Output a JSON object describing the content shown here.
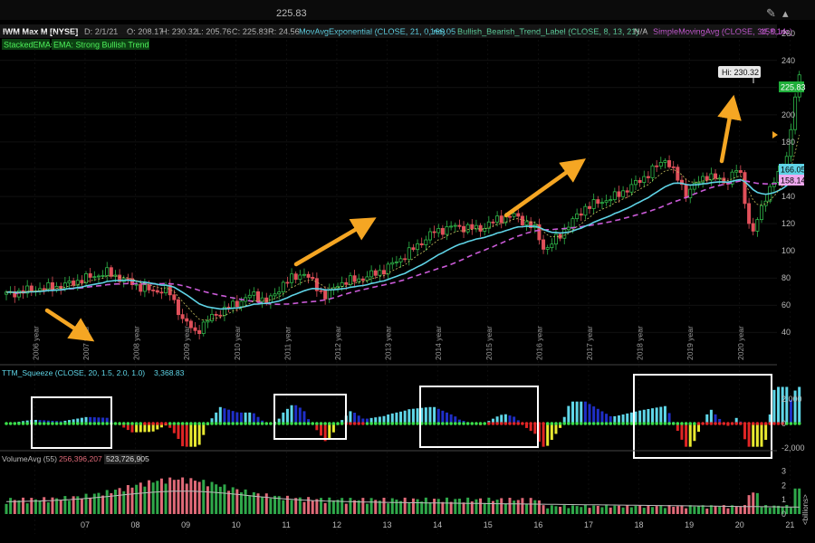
{
  "header": {
    "top_value": "225.83",
    "symbol": "IWM Max M [NYSE]",
    "date": "D: 2/1/21",
    "open": "O: 208.17",
    "high": "H: 230.32",
    "low": "L: 205.76",
    "close": "C: 225.83",
    "range": "R: 24.56",
    "ema_study": "MovAvgExponential (CLOSE, 21, 0, no)",
    "ema_value": "166.05",
    "trend_study": "Bullish_Bearish_Trend_Label (CLOSE, 8, 13, 21)",
    "trend_value": "N/A",
    "sma_study": "SimpleMovingAvg (CLOSE, 34, 0, no)",
    "sma_value": "158.14"
  },
  "labels": {
    "stacked": "StackedEMAs",
    "ema_trend": "EMA: Strong Bullish Trend"
  },
  "squeeze": {
    "title": "TTM_Squeeze (CLOSE, 20, 1.5, 2.0, 1.0)",
    "value": "3,368.83"
  },
  "volume": {
    "title": "VolumeAvg (55)",
    "avg": "256,396,207",
    "value": "523,726,905",
    "unit": "<billions>"
  },
  "callouts": {
    "high_label": "Hi: 230.32"
  },
  "colors": {
    "up": "#2fb84a",
    "down": "#e0505a",
    "ema": "#5fd3e6",
    "sma": "#c95ad6",
    "arrow": "#f5a623",
    "sq_cyan": "#5fd6e8",
    "sq_blue": "#1f2fc7",
    "sq_red": "#e02525",
    "sq_yellow": "#e8e830",
    "vol_green": "#2fa84a",
    "vol_red": "#e06a78",
    "box": "#ffffff"
  },
  "chart_data": {
    "type": "candlestick",
    "price_axis": {
      "ticks": [
        40,
        60,
        80,
        100,
        120,
        140,
        160,
        180,
        200,
        220,
        240,
        260
      ],
      "ylim": [
        25,
        265
      ]
    },
    "year_labels": [
      "2006 year",
      "2007 year",
      "2008 year",
      "2009 year",
      "2010 year",
      "2011 year",
      "2012 year",
      "2013 year",
      "2014 year",
      "2015 year",
      "2016 year",
      "2017 year",
      "2018 year",
      "2019 year",
      "2020 year"
    ],
    "bottom_axis": [
      "07",
      "08",
      "09",
      "10",
      "11",
      "12",
      "13",
      "14",
      "15",
      "16",
      "17",
      "18",
      "19",
      "20",
      "21"
    ],
    "price_anchors": [
      [
        2005.4,
        68
      ],
      [
        2006.0,
        72
      ],
      [
        2006.5,
        74
      ],
      [
        2007.0,
        80
      ],
      [
        2007.4,
        84
      ],
      [
        2007.9,
        76
      ],
      [
        2008.3,
        70
      ],
      [
        2008.6,
        72
      ],
      [
        2008.9,
        50
      ],
      [
        2009.15,
        40
      ],
      [
        2009.5,
        52
      ],
      [
        2009.9,
        60
      ],
      [
        2010.3,
        68
      ],
      [
        2010.6,
        62
      ],
      [
        2010.9,
        76
      ],
      [
        2011.3,
        84
      ],
      [
        2011.75,
        66
      ],
      [
        2012.0,
        76
      ],
      [
        2012.5,
        80
      ],
      [
        2012.9,
        86
      ],
      [
        2013.3,
        96
      ],
      [
        2013.9,
        114
      ],
      [
        2014.3,
        118
      ],
      [
        2014.8,
        116
      ],
      [
        2015.2,
        124
      ],
      [
        2015.5,
        126
      ],
      [
        2015.9,
        116
      ],
      [
        2016.1,
        100
      ],
      [
        2016.5,
        116
      ],
      [
        2016.9,
        132
      ],
      [
        2017.5,
        140
      ],
      [
        2018.0,
        152
      ],
      [
        2018.5,
        168
      ],
      [
        2018.9,
        142
      ],
      [
        2019.3,
        156
      ],
      [
        2019.7,
        150
      ],
      [
        2019.95,
        162
      ],
      [
        2020.2,
        110
      ],
      [
        2020.5,
        142
      ],
      [
        2020.8,
        160
      ],
      [
        2020.95,
        178
      ],
      [
        2021.05,
        208
      ],
      [
        2021.1,
        226
      ]
    ],
    "ema_value": 166.05,
    "sma_value": 158.14,
    "last_price": 225.83,
    "squeeze_axis": {
      "ticks": [
        "2,000",
        "0",
        "-2,000"
      ],
      "values": [
        2000,
        0,
        -2000
      ]
    },
    "volume_axis": {
      "ticks": [
        "3",
        "2",
        "1",
        "0"
      ],
      "values": [
        3,
        2,
        1,
        0
      ]
    }
  }
}
